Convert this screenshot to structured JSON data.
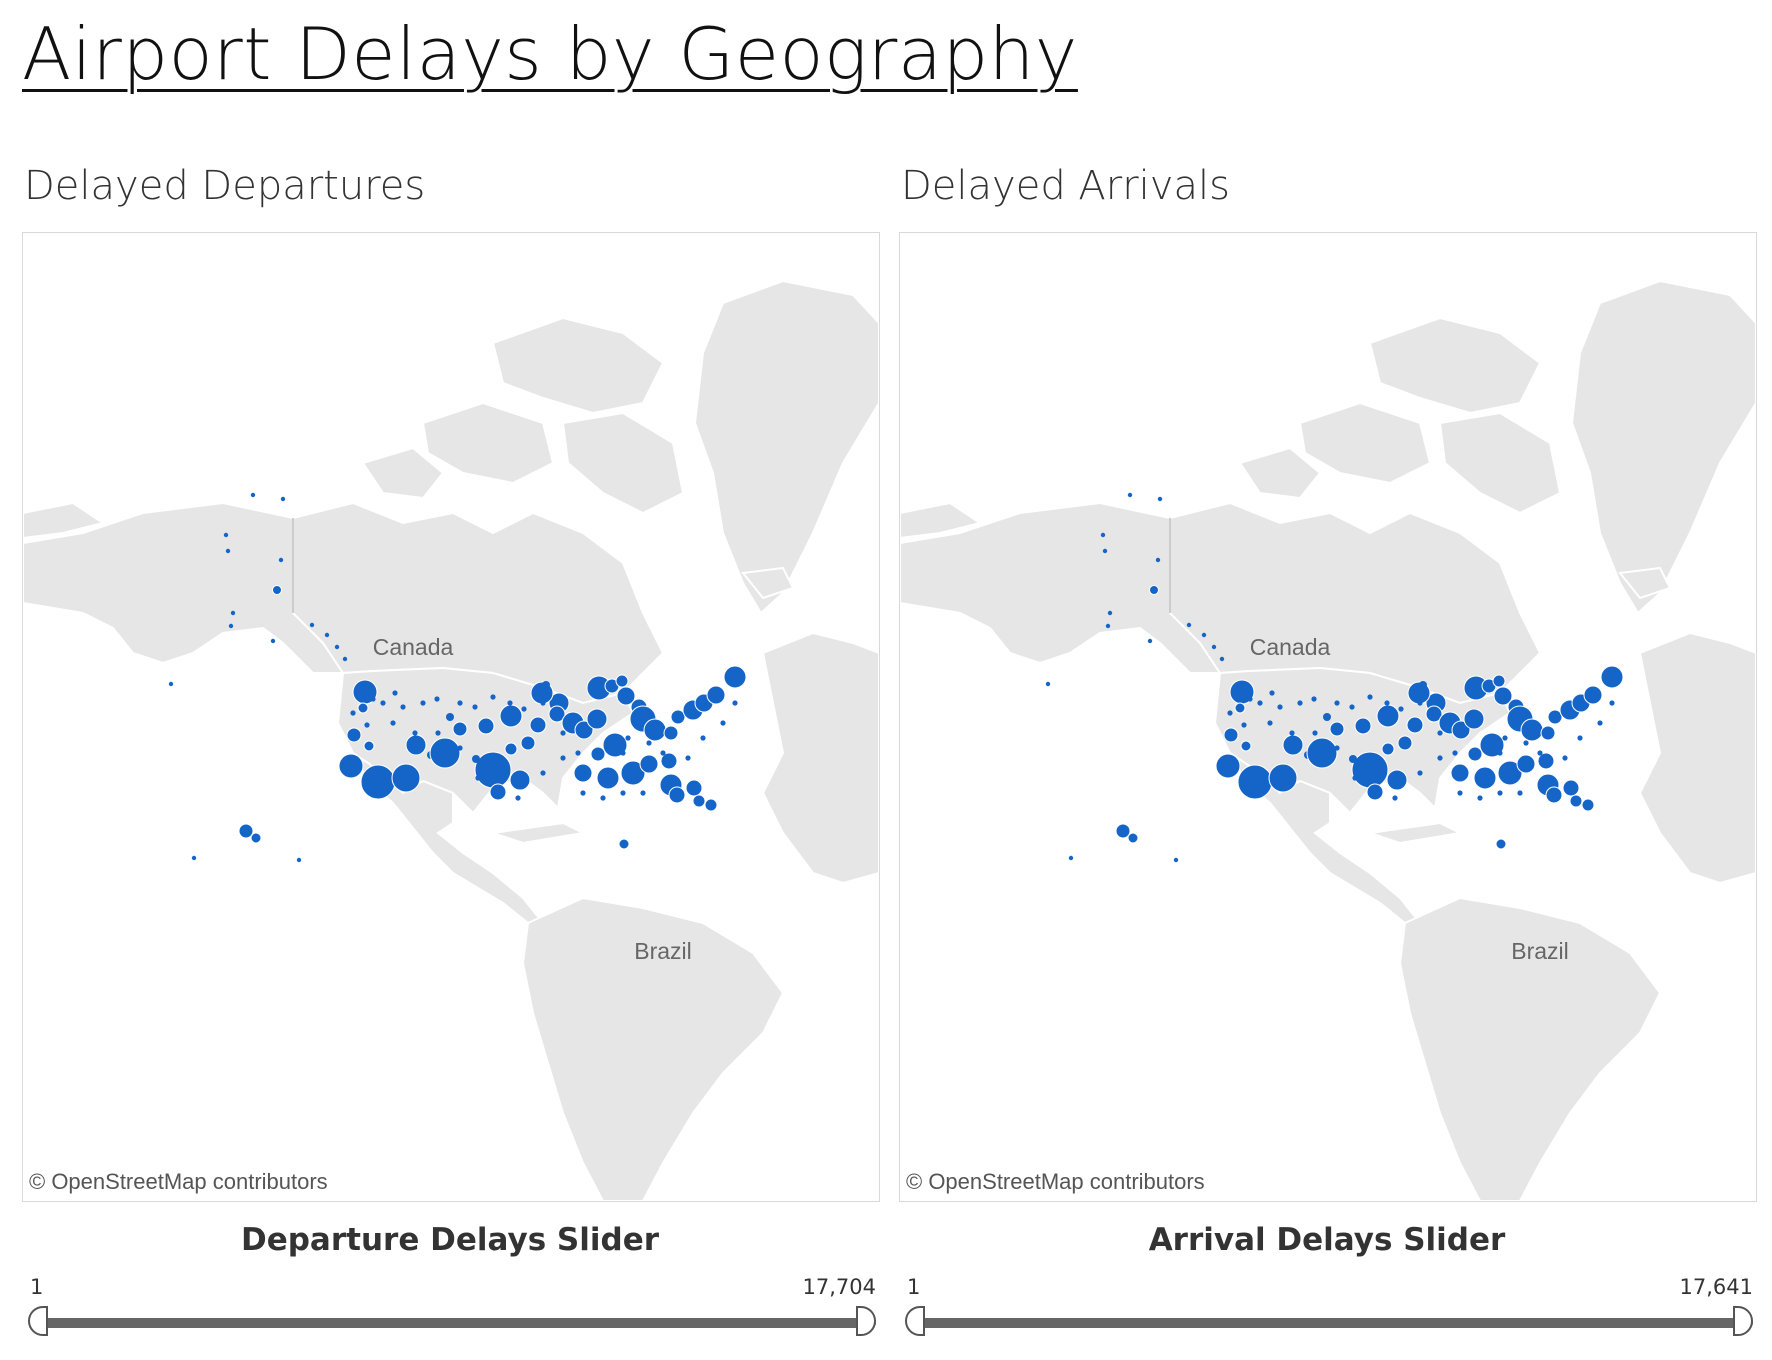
{
  "dashboard": {
    "title": "Airport Delays by Geography"
  },
  "panels": [
    {
      "title": "Delayed Departures",
      "map": {
        "labels": {
          "canada": "Canada",
          "brazil": "Brazil"
        },
        "credit": "© OpenStreetMap contributors",
        "marker_color": "#1565c8",
        "land_color": "#e6e6e6"
      },
      "slider": {
        "label": "Departure Delays Slider",
        "min": "1",
        "max": "17,704"
      }
    },
    {
      "title": "Delayed Arrivals",
      "map": {
        "labels": {
          "canada": "Canada",
          "brazil": "Brazil"
        },
        "credit": "© OpenStreetMap contributors",
        "marker_color": "#1565c8",
        "land_color": "#e6e6e6"
      },
      "slider": {
        "label": "Arrival Delays Slider",
        "min": "1",
        "max": "17,641"
      }
    }
  ]
}
